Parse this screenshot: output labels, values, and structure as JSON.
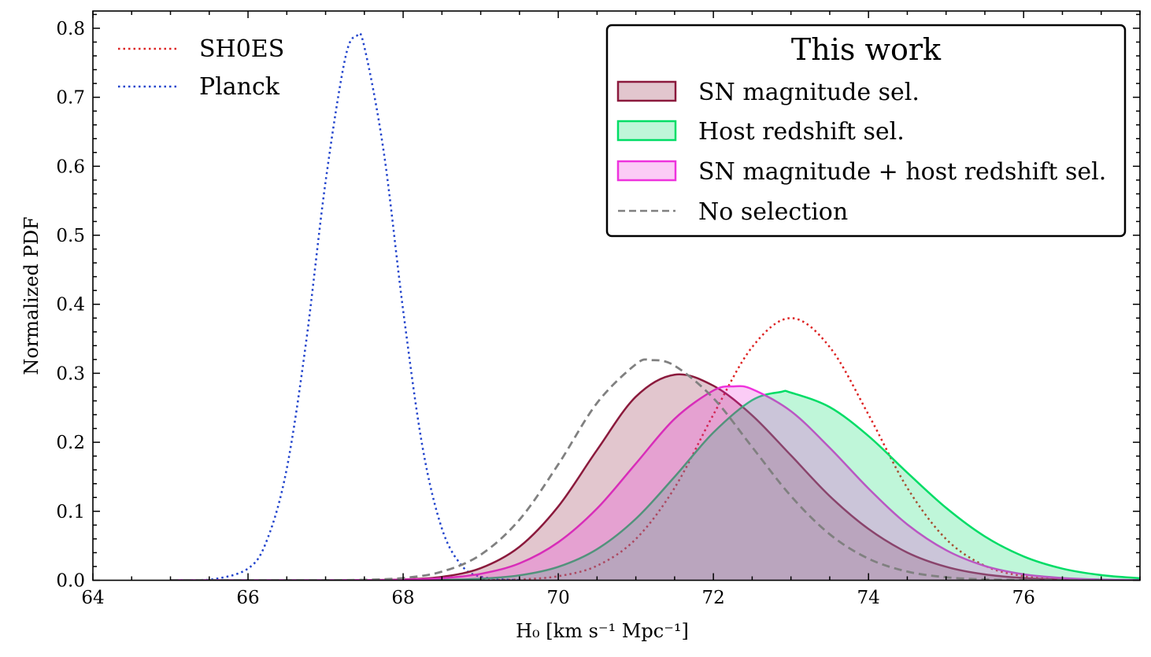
{
  "chart_data": {
    "type": "line",
    "title": "",
    "xlabel": "H₀ [km s⁻¹ Mpc⁻¹]",
    "ylabel": "Normalized PDF",
    "xlim": [
      64,
      77.5
    ],
    "ylim": [
      0,
      0.825
    ],
    "x_ticks": [
      64,
      66,
      68,
      70,
      72,
      74,
      76
    ],
    "x_tick_labels": [
      "64",
      "66",
      "68",
      "70",
      "72",
      "74",
      "76"
    ],
    "y_ticks": [
      0,
      0.1,
      0.2,
      0.3,
      0.4,
      0.5,
      0.6,
      0.7,
      0.8
    ],
    "y_tick_labels": [
      "0.0",
      "0.1",
      "0.2",
      "0.3",
      "0.4",
      "0.5",
      "0.6",
      "0.7",
      "0.8"
    ],
    "grid": false,
    "legends": [
      {
        "placement": "top-left",
        "title": "",
        "framed": false,
        "entries": [
          "SH0ES",
          "Planck"
        ]
      },
      {
        "placement": "top-right",
        "title": "This work",
        "framed": true,
        "entries": [
          "SN magnitude sel.",
          "Host redshift sel.",
          "SN magnitude + host redshift sel.",
          "No selection"
        ]
      }
    ],
    "series": [
      {
        "name": "SH0ES",
        "style": "dotted",
        "color": "#dd2222",
        "filled": false,
        "points": [
          [
            68.5,
            0
          ],
          [
            69,
            0.0002
          ],
          [
            69.5,
            0.0013
          ],
          [
            70,
            0.0059
          ],
          [
            70.5,
            0.0211
          ],
          [
            71,
            0.0598
          ],
          [
            71.5,
            0.134
          ],
          [
            72,
            0.24
          ],
          [
            72.5,
            0.338
          ],
          [
            73,
            0.38
          ],
          [
            73.5,
            0.338
          ],
          [
            74,
            0.24
          ],
          [
            74.5,
            0.134
          ],
          [
            75,
            0.0598
          ],
          [
            75.5,
            0.0211
          ],
          [
            76,
            0.0059
          ],
          [
            76.5,
            0.0013
          ],
          [
            77,
            0.0002
          ],
          [
            77.5,
            0
          ]
        ]
      },
      {
        "name": "Planck",
        "style": "dotted",
        "color": "#2244cc",
        "filled": false,
        "points": [
          [
            65,
            0
          ],
          [
            65.5,
            0.0007
          ],
          [
            66,
            0.017
          ],
          [
            66.25,
            0.06
          ],
          [
            66.5,
            0.162
          ],
          [
            66.75,
            0.346
          ],
          [
            67,
            0.578
          ],
          [
            67.25,
            0.755
          ],
          [
            67.4,
            0.789
          ],
          [
            67.5,
            0.773
          ],
          [
            67.75,
            0.621
          ],
          [
            68,
            0.391
          ],
          [
            68.25,
            0.193
          ],
          [
            68.5,
            0.075
          ],
          [
            68.75,
            0.022
          ],
          [
            69,
            0.0053
          ],
          [
            69.5,
            0.0001
          ]
        ]
      },
      {
        "name": "SN magnitude sel.",
        "style": "solid",
        "color": "#8b1a3d",
        "filled": true,
        "points": [
          [
            65,
            0
          ],
          [
            66,
            0
          ],
          [
            67,
            0
          ],
          [
            67.5,
            0.0002
          ],
          [
            68,
            0.0012
          ],
          [
            68.5,
            0.005
          ],
          [
            69,
            0.0176
          ],
          [
            69.5,
            0.0486
          ],
          [
            70,
            0.107
          ],
          [
            70.5,
            0.189
          ],
          [
            71,
            0.266
          ],
          [
            71.5,
            0.298
          ],
          [
            72,
            0.282
          ],
          [
            72.5,
            0.239
          ],
          [
            73,
            0.181
          ],
          [
            73.5,
            0.122
          ],
          [
            74,
            0.0744
          ],
          [
            74.5,
            0.0403
          ],
          [
            75,
            0.0196
          ],
          [
            75.5,
            0.0085
          ],
          [
            76,
            0.0033
          ],
          [
            76.5,
            0.0011
          ],
          [
            77,
            0.0004
          ],
          [
            77.5,
            0.0001
          ]
        ]
      },
      {
        "name": "Host redshift sel.",
        "style": "solid",
        "color": "#00dd66",
        "filled": true,
        "points": [
          [
            65,
            0
          ],
          [
            66,
            0
          ],
          [
            67,
            0
          ],
          [
            67.5,
            0
          ],
          [
            68,
            0.0001
          ],
          [
            68.5,
            0.0006
          ],
          [
            69,
            0.0023
          ],
          [
            69.5,
            0.0072
          ],
          [
            70,
            0.0195
          ],
          [
            70.5,
            0.0451
          ],
          [
            71,
            0.089
          ],
          [
            71.5,
            0.15
          ],
          [
            72,
            0.214
          ],
          [
            72.5,
            0.261
          ],
          [
            72.87,
            0.273
          ],
          [
            73,
            0.272
          ],
          [
            73.5,
            0.251
          ],
          [
            74,
            0.209
          ],
          [
            74.5,
            0.156
          ],
          [
            75,
            0.105
          ],
          [
            75.5,
            0.0635
          ],
          [
            76,
            0.0346
          ],
          [
            76.5,
            0.0169
          ],
          [
            77,
            0.0075
          ],
          [
            77.5,
            0.003
          ]
        ]
      },
      {
        "name": "SN magnitude + host redshift sel.",
        "style": "solid",
        "color": "#ee33dd",
        "filled": true,
        "points": [
          [
            65,
            0
          ],
          [
            66,
            0
          ],
          [
            67,
            0
          ],
          [
            67.5,
            0.0002
          ],
          [
            68,
            0.0008
          ],
          [
            68.5,
            0.0031
          ],
          [
            69,
            0.0094
          ],
          [
            69.5,
            0.0245
          ],
          [
            70,
            0.0551
          ],
          [
            70.5,
            0.104
          ],
          [
            71,
            0.169
          ],
          [
            71.5,
            0.234
          ],
          [
            72,
            0.275
          ],
          [
            72.26,
            0.281
          ],
          [
            72.5,
            0.277
          ],
          [
            73,
            0.245
          ],
          [
            73.5,
            0.192
          ],
          [
            74,
            0.133
          ],
          [
            74.5,
            0.081
          ],
          [
            75,
            0.0437
          ],
          [
            75.5,
            0.0208
          ],
          [
            76,
            0.0087
          ],
          [
            76.5,
            0.0033
          ],
          [
            77,
            0.0011
          ],
          [
            77.5,
            0.0003
          ]
        ]
      },
      {
        "name": "No selection",
        "style": "dashed",
        "color": "#808080",
        "filled": false,
        "points": [
          [
            65,
            0
          ],
          [
            66,
            0
          ],
          [
            66.5,
            0
          ],
          [
            67,
            0.0001
          ],
          [
            67.5,
            0.0007
          ],
          [
            68,
            0.0033
          ],
          [
            68.5,
            0.0125
          ],
          [
            69,
            0.0371
          ],
          [
            69.5,
            0.0879
          ],
          [
            70,
            0.168
          ],
          [
            70.5,
            0.257
          ],
          [
            71,
            0.313
          ],
          [
            71.2,
            0.319
          ],
          [
            71.5,
            0.311
          ],
          [
            72,
            0.264
          ],
          [
            72.5,
            0.193
          ],
          [
            73,
            0.122
          ],
          [
            73.5,
            0.0667
          ],
          [
            74,
            0.0313
          ],
          [
            74.5,
            0.0127
          ],
          [
            75,
            0.0044
          ],
          [
            75.5,
            0.0013
          ],
          [
            76,
            0.0003
          ],
          [
            76.5,
            0.0001
          ],
          [
            77,
            0
          ]
        ]
      }
    ]
  }
}
